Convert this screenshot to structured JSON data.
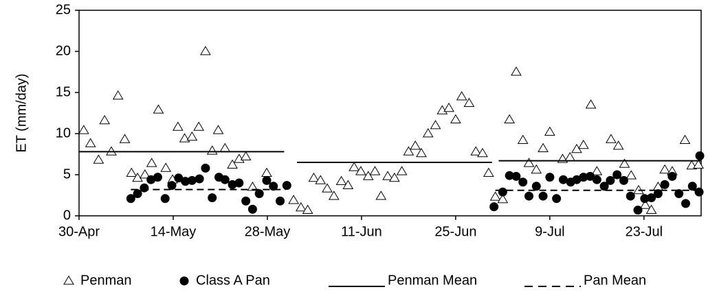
{
  "chart_data": {
    "type": "scatter",
    "y_label": "ET (mm/day)",
    "xlim": [
      0,
      92.5
    ],
    "ylim": [
      0,
      25
    ],
    "yticks": [
      0,
      5,
      10,
      15,
      20,
      25
    ],
    "xticks": [
      {
        "value": 0,
        "label": "30-Apr"
      },
      {
        "value": 14,
        "label": "14-May"
      },
      {
        "value": 28,
        "label": "28-May"
      },
      {
        "value": 42,
        "label": "11-Jun"
      },
      {
        "value": 56,
        "label": "25-Jun"
      },
      {
        "value": 70,
        "label": "9-Jul"
      },
      {
        "value": 84,
        "label": "23-Jul"
      }
    ],
    "grid": false,
    "legend": "bottom",
    "series": [
      {
        "name": "Penman",
        "color": "#000000",
        "marker": "triangle",
        "x": [
          0.7,
          1.7,
          2.9,
          3.8,
          4.8,
          5.8,
          6.8,
          7.8,
          8.7,
          9.8,
          10.8,
          11.8,
          12.9,
          13.9,
          14.7,
          15.7,
          16.8,
          17.8,
          18.8,
          19.8,
          20.7,
          21.7,
          22.8,
          23.8,
          24.8,
          25.8,
          27.9,
          31.9,
          33,
          34,
          34.9,
          35.9,
          36.9,
          37.9,
          39,
          40,
          40.9,
          41.9,
          43,
          44,
          44.9,
          45.9,
          46.9,
          48,
          49,
          50,
          50.9,
          51.9,
          53,
          54,
          55,
          56,
          56.9,
          58,
          59,
          60,
          60.9,
          61.9,
          63,
          64,
          65,
          66,
          66.9,
          68,
          69,
          70,
          71.9,
          73,
          74,
          75,
          76.1,
          77,
          79.1,
          80.2,
          81.1,
          82.1,
          83.2,
          84.2,
          85.1,
          86.1,
          87.1,
          88.2,
          90.1,
          91.1,
          92.1
        ],
        "values": [
          10.4,
          8.8,
          6.8,
          11.6,
          7.8,
          14.6,
          9.3,
          5.2,
          4.6,
          5.0,
          6.4,
          12.9,
          5.8,
          4.4,
          10.8,
          9.4,
          9.6,
          10.8,
          20,
          7.9,
          10.4,
          8.2,
          6.2,
          6.9,
          7.2,
          3.5,
          5.2,
          1.9,
          1.0,
          0.7,
          4.6,
          4.3,
          3.3,
          2.4,
          4.2,
          3.7,
          5.9,
          5.4,
          4.8,
          5.4,
          2.4,
          4.8,
          4.6,
          5.4,
          7.8,
          8.5,
          7.6,
          10,
          11,
          12.8,
          13.1,
          11.7,
          14.5,
          13.7,
          7.8,
          7.6,
          5.2,
          2.3,
          2.0,
          11.7,
          17.5,
          9.2,
          6.4,
          5.6,
          8.2,
          10.2,
          6.9,
          7.1,
          8.1,
          8.6,
          13.5,
          5.4,
          9.3,
          8.5,
          6.3,
          4.9,
          3.1,
          1.3,
          0.7,
          3.5,
          5.6,
          5.4,
          9.2,
          6.1,
          6.2
        ]
      },
      {
        "name": "Class A Pan",
        "color": "#000000",
        "marker": "circle",
        "x": [
          7.7,
          8.7,
          9.7,
          10.7,
          11.7,
          12.8,
          13.8,
          14.8,
          15.8,
          16.8,
          17.9,
          18.8,
          19.8,
          20.8,
          21.7,
          22.8,
          23.8,
          24.8,
          25.8,
          26.8,
          27.9,
          28.9,
          29.9,
          30.9,
          61.7,
          63,
          64,
          65,
          66,
          66.9,
          68,
          69,
          70,
          71,
          72,
          73.1,
          74,
          75,
          76,
          77,
          78.1,
          79,
          80,
          81,
          82,
          83.1,
          84.1,
          85.1,
          86.1,
          87.1,
          88.2,
          89.2,
          90.2,
          91.2,
          92.2,
          92.3
        ],
        "values": [
          2.1,
          2.7,
          3.4,
          4.4,
          4.7,
          2.1,
          3.7,
          4.6,
          4.2,
          4.3,
          4.5,
          5.8,
          2.2,
          4.7,
          4.4,
          3.8,
          4.0,
          1.8,
          0.8,
          2.7,
          4.3,
          3.6,
          1.8,
          3.7,
          1.1,
          2.9,
          4.9,
          4.8,
          4.1,
          2.4,
          3.6,
          2.4,
          4.7,
          2.1,
          4.4,
          4.1,
          4.4,
          4.7,
          4.8,
          4.4,
          3.6,
          4.3,
          5.0,
          4.3,
          2.4,
          0.7,
          2.1,
          2.2,
          2.7,
          3.8,
          4.8,
          2.7,
          1.5,
          3.6,
          2.9,
          7.3
        ]
      },
      {
        "name": "Penman Mean",
        "color": "#000000",
        "line": "solid",
        "x": [
          0,
          30.5,
          31,
          32.4,
          61.4,
          62,
          62.4,
          92.5
        ],
        "values": [
          7.8,
          7.8,
          null,
          6.5,
          6.5,
          null,
          6.7,
          6.7
        ]
      },
      {
        "name": "Pan Mean",
        "color": "#000000",
        "line": "dashed",
        "x": [
          7.7,
          30.7,
          46,
          61.9,
          92.3
        ],
        "values": [
          3.2,
          3.2,
          null,
          3.1,
          3.1
        ]
      }
    ]
  }
}
